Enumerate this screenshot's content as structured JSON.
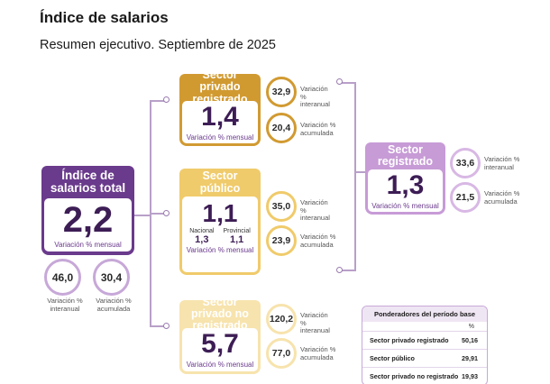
{
  "header": {
    "title": "Índice de salarios",
    "subtitle": "Resumen ejecutivo. Septiembre de 2025"
  },
  "colors": {
    "main": "#6a3a8c",
    "private_registered": "#d19a31",
    "public": "#f0cb6b",
    "private_unregistered": "#f7e3ad",
    "registered": "#c79bd6"
  },
  "total": {
    "title": "Índice de salarios total",
    "value": "2,2",
    "caption": "Variación % mensual",
    "interannual": "46,0",
    "interannual_label": "Variación % interanual",
    "accumulated": "30,4",
    "accumulated_label": "Variación % acumulada"
  },
  "private_registered": {
    "title": "Sector privado registrado",
    "value": "1,4",
    "caption": "Variación % mensual",
    "interannual": "32,9",
    "interannual_label": "Variación % interanual",
    "accumulated": "20,4",
    "accumulated_label": "Variación % acumulada"
  },
  "public": {
    "title": "Sector público",
    "value": "1,1",
    "national_label": "Nacional",
    "national_value": "1,3",
    "provincial_label": "Provincial",
    "provincial_value": "1,1",
    "caption": "Variación % mensual",
    "interannual": "35,0",
    "interannual_label": "Variación % interanual",
    "accumulated": "23,9",
    "accumulated_label": "Variación % acumulada"
  },
  "private_unregistered": {
    "title": "Sector privado no registrado",
    "value": "5,7",
    "caption": "Variación % mensual",
    "interannual": "120,2",
    "interannual_label": "Variación % interanual",
    "accumulated": "77,0",
    "accumulated_label": "Variación % acumulada"
  },
  "registered": {
    "title": "Sector registrado",
    "value": "1,3",
    "caption": "Variación % mensual",
    "interannual": "33,6",
    "interannual_label": "Variación % interanual",
    "accumulated": "21,5",
    "accumulated_label": "Variación % acumulada"
  },
  "weights": {
    "title": "Ponderadores del período base",
    "unit": "%",
    "rows": [
      {
        "label": "Sector privado registrado",
        "value": "50,16"
      },
      {
        "label": "Sector público",
        "value": "29,91"
      },
      {
        "label": "Sector privado no registrado",
        "value": "19,93"
      }
    ]
  }
}
